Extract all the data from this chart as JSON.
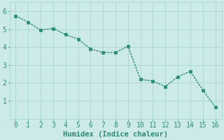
{
  "x": [
    0,
    1,
    2,
    3,
    4,
    5,
    6,
    7,
    8,
    9,
    10,
    11,
    12,
    13,
    14,
    15,
    16
  ],
  "y": [
    5.75,
    5.4,
    4.95,
    5.05,
    4.7,
    4.45,
    3.9,
    3.7,
    3.7,
    4.05,
    2.2,
    2.1,
    1.8,
    2.35,
    2.65,
    1.6,
    0.65
  ],
  "line_color": "#2d8b7a",
  "marker_color": "#2d8b7a",
  "bg_color": "#cceae7",
  "grid_color": "#aad4d0",
  "xlabel": "Humidex (Indice chaleur)",
  "xlim": [
    -0.5,
    16.5
  ],
  "ylim": [
    0,
    6.5
  ],
  "yticks": [
    1,
    2,
    3,
    4,
    5,
    6
  ],
  "xticks": [
    0,
    1,
    2,
    3,
    4,
    5,
    6,
    7,
    8,
    9,
    10,
    11,
    12,
    13,
    14,
    15,
    16
  ],
  "xlabel_fontsize": 7.5,
  "tick_fontsize": 7.0,
  "line_width": 1.0,
  "marker_size": 2.2
}
